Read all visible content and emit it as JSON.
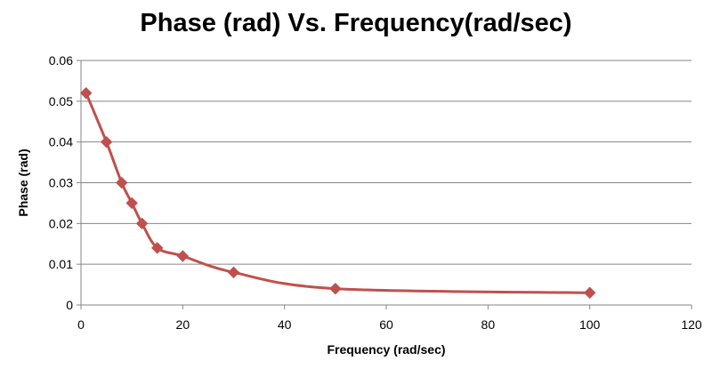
{
  "chart_data": {
    "type": "line",
    "title": "Phase (rad) Vs. Frequency(rad/sec)",
    "xlabel": "Frequency (rad/sec)",
    "ylabel": "Phase (rad)",
    "xlim": [
      0,
      120
    ],
    "ylim": [
      0,
      0.06
    ],
    "x_ticks": [
      "0",
      "20",
      "40",
      "60",
      "80",
      "100",
      "120"
    ],
    "y_ticks": [
      "0",
      "0.01",
      "0.02",
      "0.03",
      "0.04",
      "0.05",
      "0.06"
    ],
    "grid": "horizontal",
    "legend": "none",
    "series": [
      {
        "x": [
          1,
          5,
          8,
          10,
          12,
          15,
          20,
          30,
          50,
          100
        ],
        "values": [
          0.052,
          0.04,
          0.03,
          0.025,
          0.02,
          0.014,
          0.012,
          0.008,
          0.004,
          0.003
        ],
        "color": "#c0504d",
        "marker": "diamond",
        "smooth": true
      }
    ]
  }
}
